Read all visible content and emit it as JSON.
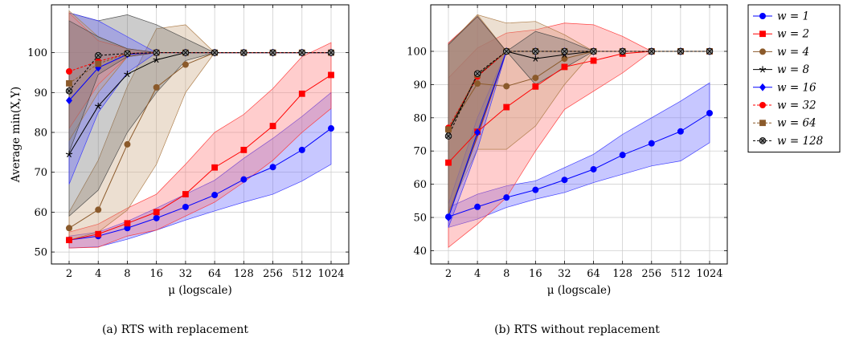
{
  "chart_data": [
    {
      "type": "line",
      "caption": "(a) RTS with replacement",
      "xlabel": "μ (logscale)",
      "ylabel": "Average min(X,Y)",
      "x": [
        2,
        4,
        8,
        16,
        32,
        64,
        128,
        256,
        512,
        1024
      ],
      "x_tick_labels": [
        "2",
        "4",
        "8",
        "16",
        "32",
        "64",
        "128",
        "256",
        "512",
        "1024"
      ],
      "y_ticks": [
        50,
        60,
        70,
        80,
        90,
        100
      ],
      "xscale": "log",
      "ylim": [
        47,
        112
      ],
      "grid": true,
      "series": [
        {
          "name": "w = 1",
          "color": "#0000ff",
          "marker": "circle",
          "dash": "solid",
          "values": [
            53,
            54,
            56,
            58.5,
            61.3,
            64.3,
            68.2,
            71.3,
            75.6,
            81
          ],
          "band_low": [
            51,
            51.3,
            53.2,
            55.5,
            58,
            60.3,
            62.5,
            64.5,
            67.8,
            72
          ],
          "band_high": [
            54,
            55,
            57.7,
            61,
            64.5,
            68,
            73.5,
            78.5,
            84,
            90
          ]
        },
        {
          "name": "w = 2",
          "color": "#ff0000",
          "marker": "square",
          "dash": "solid",
          "values": [
            53,
            54.5,
            57.2,
            60,
            64.5,
            71.2,
            75.6,
            81.6,
            89.7,
            94.4
          ],
          "band_low": [
            51,
            51.2,
            54,
            55.5,
            59,
            62.5,
            67.5,
            73,
            80,
            86
          ],
          "band_high": [
            55,
            57,
            61,
            64.5,
            72,
            80,
            84.5,
            91,
            99,
            102.5
          ]
        },
        {
          "name": "w = 4",
          "color": "#8b5a2b",
          "marker": "circle",
          "dash": "solid",
          "values": [
            56,
            60.6,
            77,
            91.3,
            97,
            100,
            100,
            100,
            100,
            100
          ],
          "band_low": [
            53,
            55,
            60.5,
            72,
            90,
            100,
            100,
            100,
            100,
            100
          ],
          "band_high": [
            60,
            73,
            91.5,
            106,
            107,
            100,
            100,
            100,
            100,
            100
          ]
        },
        {
          "name": "w = 8",
          "color": "#000000",
          "marker": "star",
          "dash": "solid",
          "values": [
            74.5,
            86.6,
            94.6,
            98.2,
            100,
            100,
            100,
            100,
            100,
            100
          ],
          "band_low": [
            59,
            65.5,
            80,
            90,
            98,
            100,
            100,
            100,
            100,
            100
          ],
          "band_high": [
            110,
            108,
            109.5,
            107,
            103.5,
            100,
            100,
            100,
            100,
            100
          ]
        },
        {
          "name": "w = 16",
          "color": "#0000ff",
          "marker": "diamond",
          "dash": "solid",
          "values": [
            88,
            96.2,
            99.6,
            100,
            100,
            100,
            100,
            100,
            100,
            100
          ],
          "band_low": [
            67,
            85,
            95,
            100,
            100,
            100,
            100,
            100,
            100,
            100
          ],
          "band_high": [
            110,
            108,
            104,
            100,
            100,
            100,
            100,
            100,
            100,
            100
          ]
        },
        {
          "name": "w = 32",
          "color": "#ff0000",
          "marker": "circle",
          "dash": "dashed",
          "values": [
            95.3,
            97.8,
            99.8,
            100,
            100,
            100,
            100,
            100,
            100,
            100
          ],
          "band_low": [
            81,
            92,
            99,
            100,
            100,
            100,
            100,
            100,
            100,
            100
          ],
          "band_high": [
            110,
            103,
            101,
            100,
            100,
            100,
            100,
            100,
            100,
            100
          ]
        },
        {
          "name": "w = 64",
          "color": "#8b5a2b",
          "marker": "square",
          "dash": "dashed",
          "values": [
            92.3,
            97.2,
            99.8,
            100,
            100,
            100,
            100,
            100,
            100,
            100
          ],
          "band_low": [
            78,
            90,
            99,
            100,
            100,
            100,
            100,
            100,
            100,
            100
          ],
          "band_high": [
            110.5,
            104,
            101,
            100,
            100,
            100,
            100,
            100,
            100,
            100
          ]
        },
        {
          "name": "w = 128",
          "color": "#000000",
          "marker": "crosscircle",
          "dash": "dashed",
          "values": [
            90.4,
            99.3,
            99.8,
            100,
            100,
            100,
            100,
            100,
            100,
            100
          ],
          "band_low": [
            75,
            94.5,
            99,
            100,
            100,
            100,
            100,
            100,
            100,
            100
          ],
          "band_high": [
            108,
            104,
            101,
            100,
            100,
            100,
            100,
            100,
            100,
            100
          ]
        }
      ]
    },
    {
      "type": "line",
      "caption": "(b) RTS without replacement",
      "xlabel": "μ (logscale)",
      "ylabel": "",
      "x": [
        2,
        4,
        8,
        16,
        32,
        64,
        128,
        256,
        512,
        1024
      ],
      "x_tick_labels": [
        "2",
        "4",
        "8",
        "16",
        "32",
        "64",
        "128",
        "256",
        "512",
        "1024"
      ],
      "y_ticks": [
        40,
        50,
        60,
        70,
        80,
        90,
        100
      ],
      "xscale": "log",
      "ylim": [
        36,
        114
      ],
      "grid": true,
      "series": [
        {
          "name": "w = 1",
          "color": "#0000ff",
          "marker": "circle",
          "dash": "solid",
          "values": [
            50.2,
            53.2,
            56,
            58.3,
            61.3,
            64.5,
            68.8,
            72.3,
            75.9,
            81.4
          ],
          "band_low": [
            47,
            49.5,
            53,
            55.5,
            57.5,
            60.5,
            63,
            65.5,
            67,
            72.5
          ],
          "band_high": [
            53,
            57,
            59.5,
            61,
            65,
            69,
            75,
            80,
            85,
            90.5
          ]
        },
        {
          "name": "w = 2",
          "color": "#ff0000",
          "marker": "square",
          "dash": "solid",
          "values": [
            66.5,
            75.8,
            83.2,
            89.4,
            95.3,
            97.2,
            99.3,
            100,
            100,
            100
          ],
          "band_low": [
            41,
            48,
            56,
            70,
            82.5,
            88,
            93.5,
            100,
            100,
            100
          ],
          "band_high": [
            92,
            101,
            105.5,
            106.5,
            108.5,
            108,
            104.5,
            100,
            100,
            100
          ]
        },
        {
          "name": "w = 4",
          "color": "#8b5a2b",
          "marker": "circle",
          "dash": "solid",
          "values": [
            76.5,
            90.3,
            89.5,
            92,
            97.8,
            100,
            100,
            100,
            100,
            100
          ],
          "band_low": [
            52,
            70.5,
            70.5,
            77.5,
            90,
            100,
            100,
            100,
            100,
            100
          ],
          "band_high": [
            102,
            111,
            108.5,
            109,
            105,
            100,
            100,
            100,
            100,
            100
          ]
        },
        {
          "name": "w = 8",
          "color": "#000000",
          "marker": "star",
          "dash": "solid",
          "values": [
            76,
            92.6,
            100,
            97.8,
            99,
            100,
            100,
            100,
            100,
            100
          ],
          "band_low": [
            51,
            74.5,
            100,
            90,
            95,
            100,
            100,
            100,
            100,
            100
          ],
          "band_high": [
            102.5,
            110.5,
            100,
            106,
            103.5,
            100,
            100,
            100,
            100,
            100
          ]
        },
        {
          "name": "w = 16",
          "color": "#0000ff",
          "marker": "diamond",
          "dash": "solid",
          "values": [
            50,
            75.6,
            100,
            100,
            100,
            100,
            100,
            100,
            100,
            100
          ],
          "band_low": [
            47,
            70.5,
            100,
            100,
            100,
            100,
            100,
            100,
            100,
            100
          ],
          "band_high": [
            54,
            80,
            100,
            100,
            100,
            100,
            100,
            100,
            100,
            100
          ]
        },
        {
          "name": "w = 32",
          "color": "#ff0000",
          "marker": "circle",
          "dash": "dashed",
          "values": [
            77,
            92.4,
            100,
            100,
            100,
            100,
            100,
            100,
            100,
            100
          ],
          "band_low": [
            51.5,
            74,
            100,
            100,
            100,
            100,
            100,
            100,
            100,
            100
          ],
          "band_high": [
            102.5,
            110.5,
            100,
            100,
            100,
            100,
            100,
            100,
            100,
            100
          ]
        },
        {
          "name": "w = 64",
          "color": "#8b5a2b",
          "marker": "square",
          "dash": "dashed",
          "values": [
            76.5,
            93,
            100,
            100,
            100,
            100,
            100,
            100,
            100,
            100
          ],
          "band_low": [
            51,
            75,
            100,
            100,
            100,
            100,
            100,
            100,
            100,
            100
          ],
          "band_high": [
            102,
            111,
            100,
            100,
            100,
            100,
            100,
            100,
            100,
            100
          ]
        },
        {
          "name": "w = 128",
          "color": "#000000",
          "marker": "crosscircle",
          "dash": "dashed",
          "values": [
            74.5,
            93.3,
            100,
            100,
            100,
            100,
            100,
            100,
            100,
            100
          ],
          "band_low": [
            50,
            74.5,
            100,
            100,
            100,
            100,
            100,
            100,
            100,
            100
          ],
          "band_high": [
            102,
            110.5,
            100,
            100,
            100,
            100,
            100,
            100,
            100,
            100
          ]
        }
      ]
    }
  ],
  "legend": {
    "placement": "right",
    "entries": [
      {
        "label": "w = 1",
        "color": "#0000ff",
        "marker": "circle",
        "dash": "solid"
      },
      {
        "label": "w = 2",
        "color": "#ff0000",
        "marker": "square",
        "dash": "solid"
      },
      {
        "label": "w = 4",
        "color": "#8b5a2b",
        "marker": "circle",
        "dash": "solid"
      },
      {
        "label": "w = 8",
        "color": "#000000",
        "marker": "star",
        "dash": "solid"
      },
      {
        "label": "w = 16",
        "color": "#0000ff",
        "marker": "diamond",
        "dash": "solid"
      },
      {
        "label": "w = 32",
        "color": "#ff0000",
        "marker": "circle",
        "dash": "dashed"
      },
      {
        "label": "w = 64",
        "color": "#8b5a2b",
        "marker": "square",
        "dash": "dashed"
      },
      {
        "label": "w = 128",
        "color": "#000000",
        "marker": "crosscircle",
        "dash": "dashed"
      }
    ]
  }
}
